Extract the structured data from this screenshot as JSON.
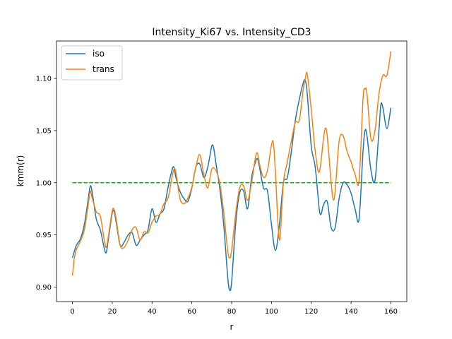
{
  "chart_data": {
    "type": "line",
    "title": "Intensity_Ki67 vs. Intensity_CD3",
    "xlabel": "r",
    "ylabel": "kmm(r)",
    "xlim": [
      -8,
      168
    ],
    "ylim": [
      0.886,
      1.136
    ],
    "xticks": [
      0,
      20,
      40,
      60,
      80,
      100,
      120,
      140,
      160
    ],
    "xtick_labels": [
      "0",
      "20",
      "40",
      "60",
      "80",
      "100",
      "120",
      "140",
      "160"
    ],
    "yticks": [
      0.9,
      0.95,
      1.0,
      1.05,
      1.1
    ],
    "ytick_labels": [
      "0.90",
      "0.95",
      "1.00",
      "1.05",
      "1.10"
    ],
    "grid": false,
    "legend_position": "upper-left",
    "series": [
      {
        "name": "iso",
        "color": "#1f77b4",
        "x": [
          0,
          2,
          4,
          6,
          8,
          9,
          10,
          12,
          14,
          16,
          17,
          18,
          20,
          21,
          22,
          24,
          26,
          28,
          30,
          32,
          34,
          36,
          38,
          40,
          42,
          44,
          46,
          48,
          50,
          51,
          52,
          54,
          56,
          58,
          60,
          62,
          64,
          66,
          68,
          70,
          71,
          72,
          74,
          76,
          78,
          79,
          80,
          82,
          84,
          86,
          88,
          90,
          92,
          93,
          94,
          96,
          98,
          100,
          102,
          104,
          106,
          108,
          110,
          112,
          114,
          116,
          117,
          118,
          120,
          122,
          124,
          125,
          126,
          128,
          130,
          132,
          134,
          136,
          138,
          140,
          142,
          144,
          146,
          147,
          148,
          150,
          152,
          154,
          155,
          156,
          158,
          160
        ],
        "y": [
          0.928,
          0.94,
          0.946,
          0.96,
          0.985,
          0.997,
          0.99,
          0.965,
          0.955,
          0.937,
          0.933,
          0.945,
          0.971,
          0.972,
          0.962,
          0.94,
          0.943,
          0.95,
          0.952,
          0.94,
          0.945,
          0.95,
          0.955,
          0.975,
          0.962,
          0.97,
          0.975,
          0.995,
          1.012,
          1.015,
          1.005,
          0.992,
          0.985,
          0.982,
          0.995,
          1.015,
          1.018,
          1.005,
          1.015,
          1.035,
          1.033,
          1.02,
          0.995,
          0.96,
          0.91,
          0.897,
          0.905,
          0.96,
          0.99,
          0.992,
          0.975,
          1.005,
          1.02,
          1.023,
          1.015,
          0.995,
          0.992,
          0.96,
          0.935,
          0.96,
          1.0,
          1.005,
          1.03,
          1.06,
          1.08,
          1.096,
          1.098,
          1.085,
          1.035,
          1.015,
          0.975,
          0.97,
          0.978,
          0.982,
          0.957,
          0.957,
          0.985,
          1.0,
          0.998,
          0.99,
          0.975,
          0.965,
          1.03,
          1.05,
          1.045,
          1.012,
          1.002,
          1.05,
          1.075,
          1.072,
          1.052,
          1.072
        ]
      },
      {
        "name": "trans",
        "color": "#ff7f0e",
        "x": [
          0,
          1,
          2,
          4,
          6,
          8,
          9,
          10,
          12,
          14,
          16,
          17,
          18,
          20,
          21,
          22,
          24,
          26,
          28,
          30,
          32,
          34,
          36,
          38,
          40,
          42,
          44,
          46,
          48,
          50,
          51,
          52,
          54,
          56,
          58,
          60,
          62,
          64,
          66,
          68,
          70,
          72,
          74,
          76,
          78,
          79,
          80,
          82,
          84,
          86,
          88,
          90,
          92,
          93,
          94,
          96,
          98,
          100,
          101,
          102,
          104,
          106,
          108,
          110,
          112,
          114,
          116,
          117,
          118,
          120,
          122,
          124,
          126,
          127,
          128,
          130,
          131,
          132,
          134,
          136,
          138,
          140,
          142,
          144,
          146,
          147,
          148,
          150,
          152,
          154,
          156,
          158,
          160
        ],
        "y": [
          0.911,
          0.928,
          0.936,
          0.944,
          0.955,
          0.98,
          0.992,
          0.985,
          0.972,
          0.968,
          0.945,
          0.938,
          0.948,
          0.973,
          0.974,
          0.965,
          0.94,
          0.938,
          0.945,
          0.955,
          0.957,
          0.945,
          0.953,
          0.952,
          0.962,
          0.968,
          0.97,
          0.98,
          0.985,
          1.005,
          1.013,
          1.01,
          0.985,
          0.98,
          0.985,
          0.996,
          1.015,
          1.027,
          1.008,
          0.995,
          1.013,
          1.012,
          1.0,
          0.972,
          0.935,
          0.928,
          0.935,
          0.97,
          0.995,
          0.997,
          0.983,
          1.0,
          1.025,
          1.028,
          1.018,
          1.005,
          1.012,
          1.036,
          1.038,
          1.01,
          0.945,
          1.0,
          1.02,
          1.04,
          1.058,
          1.06,
          1.09,
          1.1,
          1.104,
          1.07,
          1.03,
          1.01,
          1.04,
          1.052,
          1.045,
          1.0,
          0.984,
          0.992,
          1.04,
          1.045,
          1.03,
          1.02,
          1.008,
          1.002,
          1.08,
          1.09,
          1.085,
          1.042,
          1.05,
          1.085,
          1.103,
          1.103,
          1.126
        ]
      },
      {
        "name": "",
        "color": "#2ca02c",
        "dashed": true,
        "x": [
          0,
          160
        ],
        "y": [
          1.0,
          1.0
        ]
      }
    ]
  }
}
